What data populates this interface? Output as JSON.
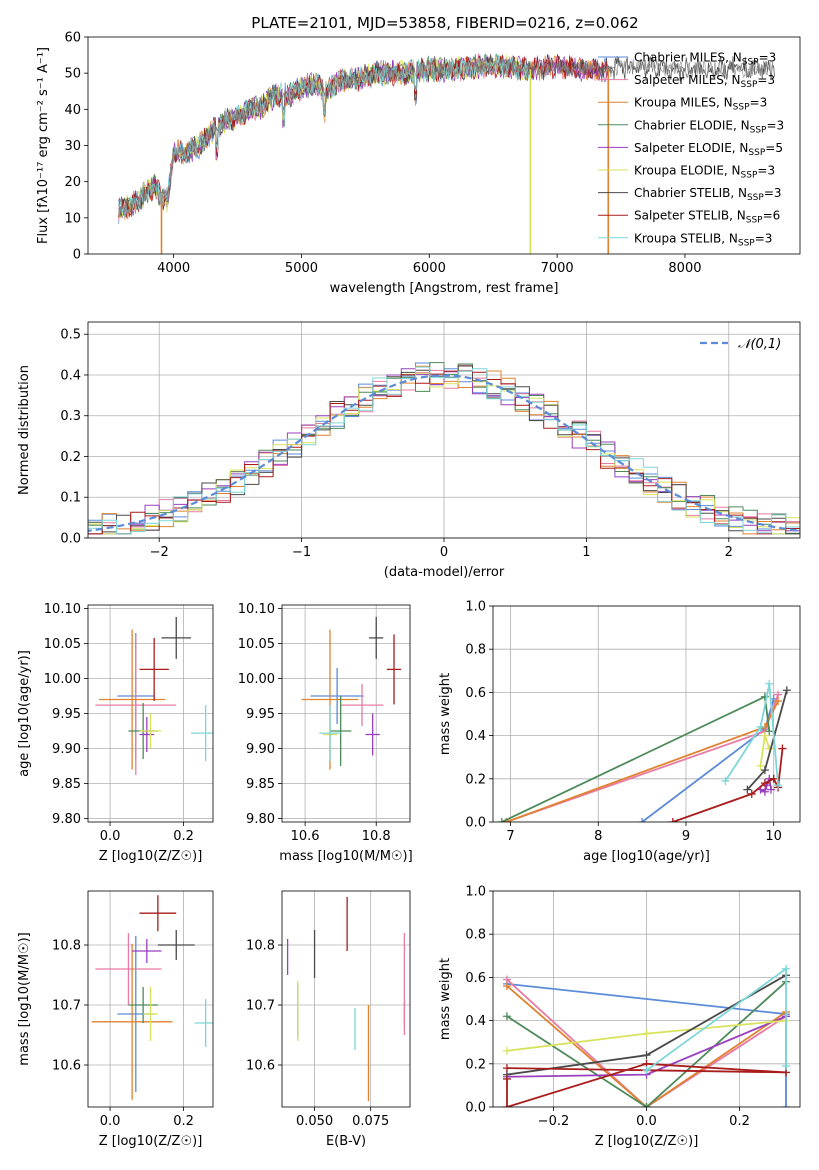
{
  "figure_title": "PLATE=2101, MJD=53858, FIBERID=0216, z=0.062",
  "colors": {
    "Chabrier MILES": "#5b8bd9",
    "Salpeter MILES": "#e87ba5",
    "Kroupa MILES": "#e0822e",
    "Chabrier ELODIE": "#4d8a5a",
    "Salpeter ELODIE": "#9a3fbf",
    "Kroupa ELODIE": "#d8e25a",
    "Chabrier STELIB": "#4a4a4a",
    "Salpeter STELIB": "#a91c1c",
    "Kroupa STELIB": "#7dd6d8"
  },
  "chart_data": [
    {
      "id": "spectrum",
      "type": "line",
      "title": "PLATE=2101, MJD=53858, FIBERID=0216, z=0.062",
      "xlabel": "wavelength [Angstrom, rest frame]",
      "ylabel": "Flux [fλ10⁻¹⁷ erg cm⁻² s⁻¹ A⁻¹]",
      "xlim": [
        3330,
        8900
      ],
      "ylim": [
        0,
        60
      ],
      "xticks": [
        4000,
        5000,
        6000,
        7000,
        8000
      ],
      "yticks": [
        0,
        10,
        20,
        30,
        40,
        50,
        60
      ],
      "legend_position": "top-right",
      "legend": [
        "Chabrier MILES, N_SSP=3",
        "Salpeter MILES, N_SSP=3",
        "Kroupa MILES, N_SSP=3",
        "Chabrier ELODIE, N_SSP=3",
        "Salpeter ELODIE, N_SSP=5",
        "Kroupa ELODIE, N_SSP=3",
        "Chabrier STELIB, N_SSP=3",
        "Salpeter STELIB, N_SSP=6",
        "Kroupa STELIB, N_SSP=3"
      ],
      "continuum": [
        [
          3570,
          12
        ],
        [
          3700,
          14
        ],
        [
          3850,
          19
        ],
        [
          3900,
          16
        ],
        [
          3950,
          15
        ],
        [
          4000,
          28
        ],
        [
          4100,
          28
        ],
        [
          4200,
          30
        ],
        [
          4300,
          34
        ],
        [
          4400,
          37
        ],
        [
          4500,
          38
        ],
        [
          4600,
          40
        ],
        [
          4700,
          41
        ],
        [
          4800,
          44
        ],
        [
          4900,
          44
        ],
        [
          5000,
          46
        ],
        [
          5100,
          47
        ],
        [
          5200,
          45
        ],
        [
          5300,
          48
        ],
        [
          5400,
          48
        ],
        [
          5600,
          50
        ],
        [
          5800,
          50
        ],
        [
          6000,
          51
        ],
        [
          6200,
          51
        ],
        [
          6400,
          52
        ],
        [
          6600,
          52
        ],
        [
          6800,
          51
        ],
        [
          7000,
          52
        ],
        [
          7200,
          51
        ],
        [
          7400,
          51
        ],
        [
          7600,
          52
        ],
        [
          8000,
          51
        ],
        [
          8500,
          51
        ],
        [
          8900,
          52
        ]
      ],
      "model_end_wavelength": [
        7400,
        7400,
        7400,
        6800,
        7400,
        6800,
        8700,
        7400,
        6800
      ],
      "spikes": [
        [
          3905,
          0
        ],
        [
          7400,
          0
        ],
        [
          6790,
          0
        ]
      ]
    },
    {
      "id": "residuals",
      "type": "bar",
      "xlabel": "(data-model)/error",
      "ylabel": "Normed distribution",
      "xlim": [
        -2.5,
        2.5
      ],
      "ylim": [
        0,
        0.53
      ],
      "xticks": [
        -2,
        -1,
        0,
        1,
        2
      ],
      "yticks": [
        0.0,
        0.1,
        0.2,
        0.3,
        0.4,
        0.5
      ],
      "reference": "𝒩(0,1)",
      "legend_position": "top-right"
    },
    {
      "id": "age_vs_Z",
      "type": "scatter",
      "xlabel": "Z [log10(Z/Z☉)]",
      "ylabel": "age  [log10(age/yr)]",
      "xlim": [
        -0.06,
        0.28
      ],
      "ylim": [
        9.795,
        10.105
      ],
      "xticks": [
        0.0,
        0.2
      ],
      "yticks": [
        9.8,
        9.85,
        9.9,
        9.95,
        10.0,
        10.05,
        10.1
      ],
      "points": [
        {
          "series": "Chabrier MILES",
          "x": 0.07,
          "xerr": 0.05,
          "y": 9.975,
          "yerr": 0.09
        },
        {
          "series": "Salpeter MILES",
          "x": 0.07,
          "xerr": 0.11,
          "y": 9.962,
          "yerr": 0.1
        },
        {
          "series": "Kroupa MILES",
          "x": 0.06,
          "xerr": 0.09,
          "y": 9.97,
          "yerr": 0.1
        },
        {
          "series": "Chabrier ELODIE",
          "x": 0.09,
          "xerr": 0.04,
          "y": 9.925,
          "yerr": 0.04
        },
        {
          "series": "Salpeter ELODIE",
          "x": 0.1,
          "xerr": 0.02,
          "y": 9.92,
          "yerr": 0.025
        },
        {
          "series": "Kroupa ELODIE",
          "x": 0.11,
          "xerr": 0.03,
          "y": 9.925,
          "yerr": 0.025
        },
        {
          "series": "Chabrier STELIB",
          "x": 0.18,
          "xerr": 0.04,
          "y": 10.058,
          "yerr": 0.03
        },
        {
          "series": "Salpeter STELIB",
          "x": 0.12,
          "xerr": 0.04,
          "y": 10.013,
          "yerr": 0.045
        },
        {
          "series": "Kroupa STELIB",
          "x": 0.26,
          "xerr": 0.04,
          "y": 9.922,
          "yerr": 0.04
        }
      ]
    },
    {
      "id": "age_vs_mass",
      "type": "scatter",
      "xlabel": "mass [log10(M/M☉)]",
      "ylabel": "",
      "xlim": [
        10.535,
        10.895
      ],
      "ylim": [
        9.795,
        10.105
      ],
      "xticks": [
        10.6,
        10.8
      ],
      "yticks": [
        9.8,
        9.85,
        9.9,
        9.95,
        10.0,
        10.05,
        10.1
      ],
      "points": [
        {
          "series": "Chabrier MILES",
          "x": 10.69,
          "xerr": 0.075,
          "y": 9.975,
          "yerr": 0.04
        },
        {
          "series": "Salpeter MILES",
          "x": 10.76,
          "xerr": 0.06,
          "y": 9.962,
          "yerr": 0.03
        },
        {
          "series": "Kroupa MILES",
          "x": 10.67,
          "xerr": 0.08,
          "y": 9.97,
          "yerr": 0.1
        },
        {
          "series": "Chabrier ELODIE",
          "x": 10.7,
          "xerr": 0.03,
          "y": 9.925,
          "yerr": 0.05
        },
        {
          "series": "Salpeter ELODIE",
          "x": 10.79,
          "xerr": 0.02,
          "y": 9.92,
          "yerr": 0.03
        },
        {
          "series": "Kroupa ELODIE",
          "x": 10.67,
          "xerr": 0.02,
          "y": 9.92,
          "yerr": 0.03
        },
        {
          "series": "Chabrier STELIB",
          "x": 10.8,
          "xerr": 0.02,
          "y": 10.058,
          "yerr": 0.03
        },
        {
          "series": "Salpeter STELIB",
          "x": 10.85,
          "xerr": 0.02,
          "y": 10.013,
          "yerr": 0.05
        },
        {
          "series": "Kroupa STELIB",
          "x": 10.67,
          "xerr": 0.03,
          "y": 9.922,
          "yerr": 0.04
        }
      ]
    },
    {
      "id": "weight_vs_age",
      "type": "line",
      "xlabel": "age  [log10(age/yr)]",
      "ylabel": "mass weight",
      "xlim": [
        6.8,
        10.3
      ],
      "ylim": [
        0,
        1
      ],
      "xticks": [
        7,
        8,
        9,
        10
      ],
      "yticks": [
        0.0,
        0.2,
        0.4,
        0.6,
        0.8,
        1.0
      ],
      "grid": true,
      "series": [
        {
          "name": "Chabrier MILES",
          "points": [
            [
              8.5,
              0.0
            ],
            [
              9.9,
              0.43
            ],
            [
              10.0,
              0.57
            ]
          ]
        },
        {
          "name": "Salpeter MILES",
          "points": [
            [
              6.95,
              0.0
            ],
            [
              9.9,
              0.42
            ],
            [
              10.05,
              0.59
            ]
          ]
        },
        {
          "name": "Kroupa MILES",
          "points": [
            [
              6.95,
              0.0
            ],
            [
              9.9,
              0.44
            ],
            [
              10.05,
              0.56
            ]
          ]
        },
        {
          "name": "Chabrier ELODIE",
          "points": [
            [
              6.9,
              0.0
            ],
            [
              9.9,
              0.58
            ],
            [
              9.95,
              0.42
            ]
          ]
        },
        {
          "name": "Salpeter ELODIE",
          "points": [
            [
              9.85,
              0.15
            ],
            [
              9.9,
              0.14
            ],
            [
              9.92,
              0.17
            ],
            [
              9.95,
              0.2
            ],
            [
              9.97,
              0.15
            ]
          ]
        },
        {
          "name": "Kroupa ELODIE",
          "points": [
            [
              9.85,
              0.26
            ],
            [
              9.9,
              0.4
            ],
            [
              9.95,
              0.34
            ]
          ]
        },
        {
          "name": "Chabrier STELIB",
          "points": [
            [
              9.7,
              0.15
            ],
            [
              9.9,
              0.24
            ],
            [
              10.15,
              0.61
            ]
          ]
        },
        {
          "name": "Salpeter STELIB",
          "points": [
            [
              8.85,
              0.0
            ],
            [
              9.75,
              0.13
            ],
            [
              9.9,
              0.18
            ],
            [
              10.0,
              0.2
            ],
            [
              10.05,
              0.16
            ],
            [
              10.1,
              0.34
            ]
          ]
        },
        {
          "name": "Kroupa STELIB",
          "points": [
            [
              9.45,
              0.19
            ],
            [
              9.85,
              0.44
            ],
            [
              9.95,
              0.64
            ],
            [
              10.05,
              0.17
            ]
          ]
        }
      ]
    },
    {
      "id": "mass_vs_Z",
      "type": "scatter",
      "xlabel": "Z [log10(Z/Z☉)]",
      "ylabel": "mass [log10(M/M☉)]",
      "xlim": [
        -0.06,
        0.28
      ],
      "ylim": [
        10.53,
        10.89
      ],
      "xticks": [
        0.0,
        0.2
      ],
      "yticks": [
        10.6,
        10.7,
        10.8
      ],
      "points": [
        {
          "series": "Chabrier MILES",
          "x": 0.07,
          "xerr": 0.05,
          "y": 10.685,
          "yerr": 0.13
        },
        {
          "series": "Salpeter MILES",
          "x": 0.05,
          "xerr": 0.09,
          "y": 10.76,
          "yerr": 0.06
        },
        {
          "series": "Kroupa MILES",
          "x": 0.06,
          "xerr": 0.11,
          "y": 10.672,
          "yerr": 0.13
        },
        {
          "series": "Chabrier ELODIE",
          "x": 0.09,
          "xerr": 0.04,
          "y": 10.7,
          "yerr": 0.03
        },
        {
          "series": "Salpeter ELODIE",
          "x": 0.1,
          "xerr": 0.04,
          "y": 10.79,
          "yerr": 0.02
        },
        {
          "series": "Kroupa ELODIE",
          "x": 0.11,
          "xerr": 0.02,
          "y": 10.685,
          "yerr": 0.045
        },
        {
          "series": "Chabrier STELIB",
          "x": 0.18,
          "xerr": 0.05,
          "y": 10.8,
          "yerr": 0.025
        },
        {
          "series": "Salpeter STELIB",
          "x": 0.13,
          "xerr": 0.05,
          "y": 10.853,
          "yerr": 0.03
        },
        {
          "series": "Kroupa STELIB",
          "x": 0.26,
          "xerr": 0.03,
          "y": 10.67,
          "yerr": 0.04
        }
      ]
    },
    {
      "id": "mass_vs_EBV",
      "type": "scatter",
      "xlabel": "E(B-V)",
      "ylabel": "",
      "xlim": [
        0.0355,
        0.0925
      ],
      "ylim": [
        10.53,
        10.89
      ],
      "xticks": [
        0.05,
        0.075
      ],
      "yticks": [
        10.6,
        10.7,
        10.8
      ],
      "points": [
        {
          "series": "Chabrier MILES",
          "x": 0.09,
          "xerr": 0,
          "y": 10.685,
          "yerr": 0.02
        },
        {
          "series": "Salpeter MILES",
          "x": 0.09,
          "xerr": 0,
          "y": 10.735,
          "yerr": 0.085
        },
        {
          "series": "Kroupa MILES",
          "x": 0.074,
          "xerr": 0,
          "y": 10.62,
          "yerr": 0.08
        },
        {
          "series": "Chabrier ELODIE",
          "x": 0.0425,
          "xerr": 0,
          "y": 10.69,
          "yerr": 0.045
        },
        {
          "series": "Salpeter ELODIE",
          "x": 0.038,
          "xerr": 0,
          "y": 10.78,
          "yerr": 0.03
        },
        {
          "series": "Kroupa ELODIE",
          "x": 0.0425,
          "xerr": 0,
          "y": 10.69,
          "yerr": 0.05
        },
        {
          "series": "Chabrier STELIB",
          "x": 0.05,
          "xerr": 0,
          "y": 10.785,
          "yerr": 0.04
        },
        {
          "series": "Salpeter STELIB",
          "x": 0.0645,
          "xerr": 0,
          "y": 10.835,
          "yerr": 0.045
        },
        {
          "series": "Kroupa STELIB",
          "x": 0.068,
          "xerr": 0,
          "y": 10.66,
          "yerr": 0.035
        }
      ]
    },
    {
      "id": "weight_vs_Z",
      "type": "line",
      "xlabel": "Z [log10(Z/Z☉)]",
      "ylabel": "mass weight",
      "xlim": [
        -0.33,
        0.33
      ],
      "ylim": [
        0,
        1
      ],
      "xticks": [
        -0.2,
        0.0,
        0.2
      ],
      "yticks": [
        0.0,
        0.2,
        0.4,
        0.6,
        0.8,
        1.0
      ],
      "grid": true,
      "series": [
        {
          "name": "Chabrier MILES",
          "points": [
            [
              -0.3,
              0.57
            ],
            [
              0.3,
              0.43
            ],
            [
              0.3,
              0.0
            ]
          ]
        },
        {
          "name": "Salpeter MILES",
          "points": [
            [
              -0.3,
              0.59
            ],
            [
              0.0,
              0.0
            ],
            [
              0.3,
              0.42
            ]
          ]
        },
        {
          "name": "Kroupa MILES",
          "points": [
            [
              -0.3,
              0.56
            ],
            [
              0.0,
              0.0
            ],
            [
              0.3,
              0.44
            ]
          ]
        },
        {
          "name": "Chabrier ELODIE",
          "points": [
            [
              -0.3,
              0.42
            ],
            [
              0.0,
              0.0
            ],
            [
              0.3,
              0.58
            ]
          ]
        },
        {
          "name": "Salpeter ELODIE",
          "points": [
            [
              -0.3,
              0.14
            ],
            [
              0.0,
              0.15
            ],
            [
              0.3,
              0.42
            ]
          ]
        },
        {
          "name": "Kroupa ELODIE",
          "points": [
            [
              -0.3,
              0.26
            ],
            [
              0.0,
              0.34
            ],
            [
              0.3,
              0.4
            ]
          ]
        },
        {
          "name": "Chabrier STELIB",
          "points": [
            [
              -0.3,
              0.15
            ],
            [
              0.0,
              0.24
            ],
            [
              0.3,
              0.61
            ]
          ]
        },
        {
          "name": "Salpeter STELIB",
          "points": [
            [
              -0.3,
              0.13
            ],
            [
              -0.3,
              0.0
            ],
            [
              0.0,
              0.2
            ],
            [
              0.3,
              0.16
            ],
            [
              -0.3,
              0.18
            ]
          ]
        },
        {
          "name": "Kroupa STELIB",
          "points": [
            [
              0.0,
              0.17
            ],
            [
              0.3,
              0.64
            ],
            [
              0.3,
              0.19
            ]
          ]
        }
      ]
    }
  ]
}
